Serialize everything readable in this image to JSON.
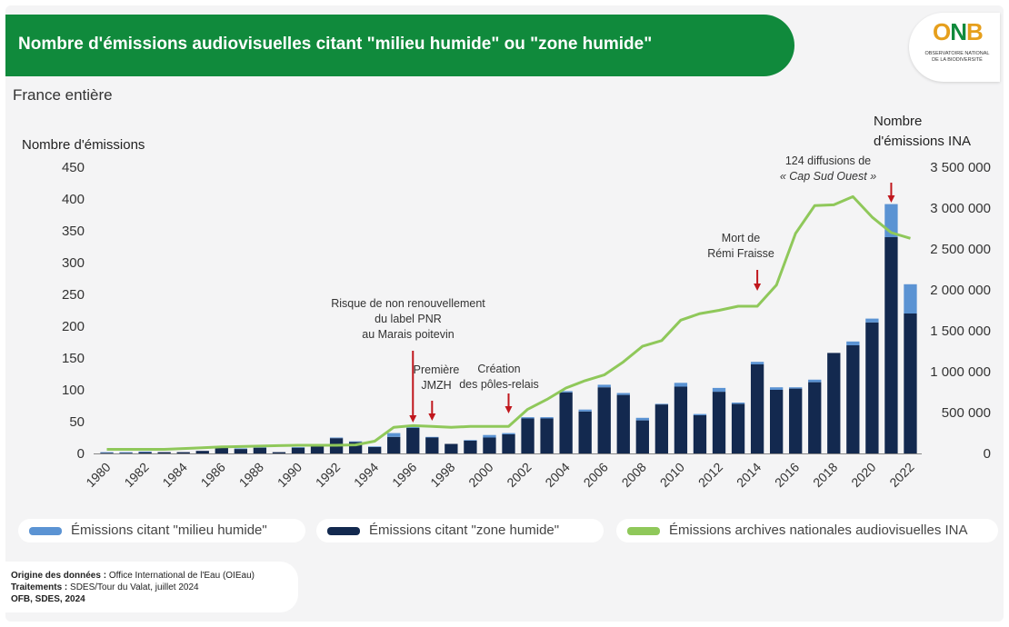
{
  "header": {
    "title": "Nombre d'émissions audiovisuelles citant \"milieu humide\"  ou \"zone humide\"",
    "subtitle": "France entière"
  },
  "logo": {
    "mark": "ONB",
    "line1": "OBSERVATOIRE NATIONAL",
    "line2": "DE LA BIODIVERSITÉ"
  },
  "colors": {
    "green_banner": "#108a3c",
    "milieu": "#5b93d3",
    "zone": "#13294f",
    "ina": "#8fc85a",
    "arrow": "#c0171d"
  },
  "legend": {
    "milieu": "Émissions citant \"milieu humide\"",
    "zone": "Émissions citant \"zone humide\"",
    "ina": "Émissions archives nationales audiovisuelles INA"
  },
  "source": {
    "origin_label": "Origine des données :",
    "origin_value": "Office International de l'Eau (OIEau)",
    "treatment_label": "Traitements :",
    "treatment_value": "SDES/Tour du Valat, juillet 2024",
    "credit": "OFB, SDES, 2024"
  },
  "chart_data": {
    "type": "bar",
    "left_axis_label": "Nombre d'émissions",
    "right_axis_label_line1": "Nombre",
    "right_axis_label_line2": "d'émissions INA",
    "ylim": [
      0,
      450
    ],
    "yticks": [
      "0",
      "50",
      "100",
      "150",
      "200",
      "250",
      "300",
      "350",
      "400",
      "450"
    ],
    "y2lim": [
      0,
      3500000
    ],
    "y2ticks": [
      "0",
      "500 000",
      "1 000 000",
      "1 500 000",
      "2 000 000",
      "2 500 000",
      "3 000 000",
      "3 500 000"
    ],
    "years": [
      1980,
      1981,
      1982,
      1983,
      1984,
      1985,
      1986,
      1987,
      1988,
      1989,
      1990,
      1991,
      1992,
      1993,
      1994,
      1995,
      1996,
      1997,
      1998,
      1999,
      2000,
      2001,
      2002,
      2003,
      2004,
      2005,
      2006,
      2007,
      2008,
      2009,
      2010,
      2011,
      2012,
      2013,
      2014,
      2015,
      2016,
      2017,
      2018,
      2019,
      2020,
      2021,
      2022
    ],
    "xtick_labels": [
      "1980",
      "1982",
      "1984",
      "1986",
      "1988",
      "1990",
      "1992",
      "1994",
      "1996",
      "1998",
      "2000",
      "2002",
      "2004",
      "2006",
      "2008",
      "2010",
      "2012",
      "2014",
      "2016",
      "2018",
      "2020",
      "2022"
    ],
    "series": [
      {
        "name": "Émissions citant \"zone humide\"",
        "kind": "bar",
        "values": [
          1,
          1,
          2,
          2,
          2,
          4,
          9,
          7,
          9,
          2,
          9,
          11,
          24,
          18,
          10,
          26,
          40,
          25,
          15,
          20,
          25,
          30,
          55,
          55,
          96,
          66,
          104,
          92,
          52,
          77,
          105,
          60,
          97,
          78,
          140,
          100,
          102,
          112,
          158,
          170,
          206,
          340,
          220
        ]
      },
      {
        "name": "Émissions citant \"milieu humide\"",
        "kind": "bar-stacked",
        "values": [
          1,
          1,
          1,
          0,
          0,
          0,
          1,
          1,
          1,
          0,
          1,
          1,
          1,
          1,
          1,
          6,
          2,
          1,
          0,
          1,
          4,
          2,
          2,
          2,
          2,
          3,
          4,
          3,
          4,
          1,
          6,
          2,
          6,
          2,
          4,
          4,
          2,
          4,
          0,
          6,
          6,
          52,
          46
        ]
      },
      {
        "name": "Émissions archives nationales audiovisuelles INA",
        "kind": "line",
        "axis": "right",
        "values": [
          50000,
          50000,
          50000,
          50000,
          60000,
          70000,
          80000,
          85000,
          90000,
          95000,
          100000,
          100000,
          100000,
          105000,
          150000,
          320000,
          340000,
          330000,
          320000,
          330000,
          330000,
          330000,
          540000,
          660000,
          800000,
          890000,
          960000,
          1120000,
          1310000,
          1380000,
          1630000,
          1710000,
          1750000,
          1800000,
          1800000,
          2060000,
          2690000,
          3030000,
          3040000,
          3140000,
          2890000,
          2700000,
          2630000
        ]
      }
    ],
    "annotations": [
      {
        "text_lines": [
          "Risque de non renouvellement",
          "du label PNR",
          "au Marais poitevin"
        ],
        "year": 1996
      },
      {
        "text_lines": [
          "Première",
          "JMZH"
        ],
        "year": 1997
      },
      {
        "text_lines": [
          "Création",
          "des pôles-relais"
        ],
        "year": 2001
      },
      {
        "text_lines": [
          "Mort de",
          "Rémi Fraisse"
        ],
        "year": 2014
      },
      {
        "text_lines": [
          "124 diffusions de",
          "« Cap Sud Ouest »"
        ],
        "year": 2021
      }
    ]
  }
}
